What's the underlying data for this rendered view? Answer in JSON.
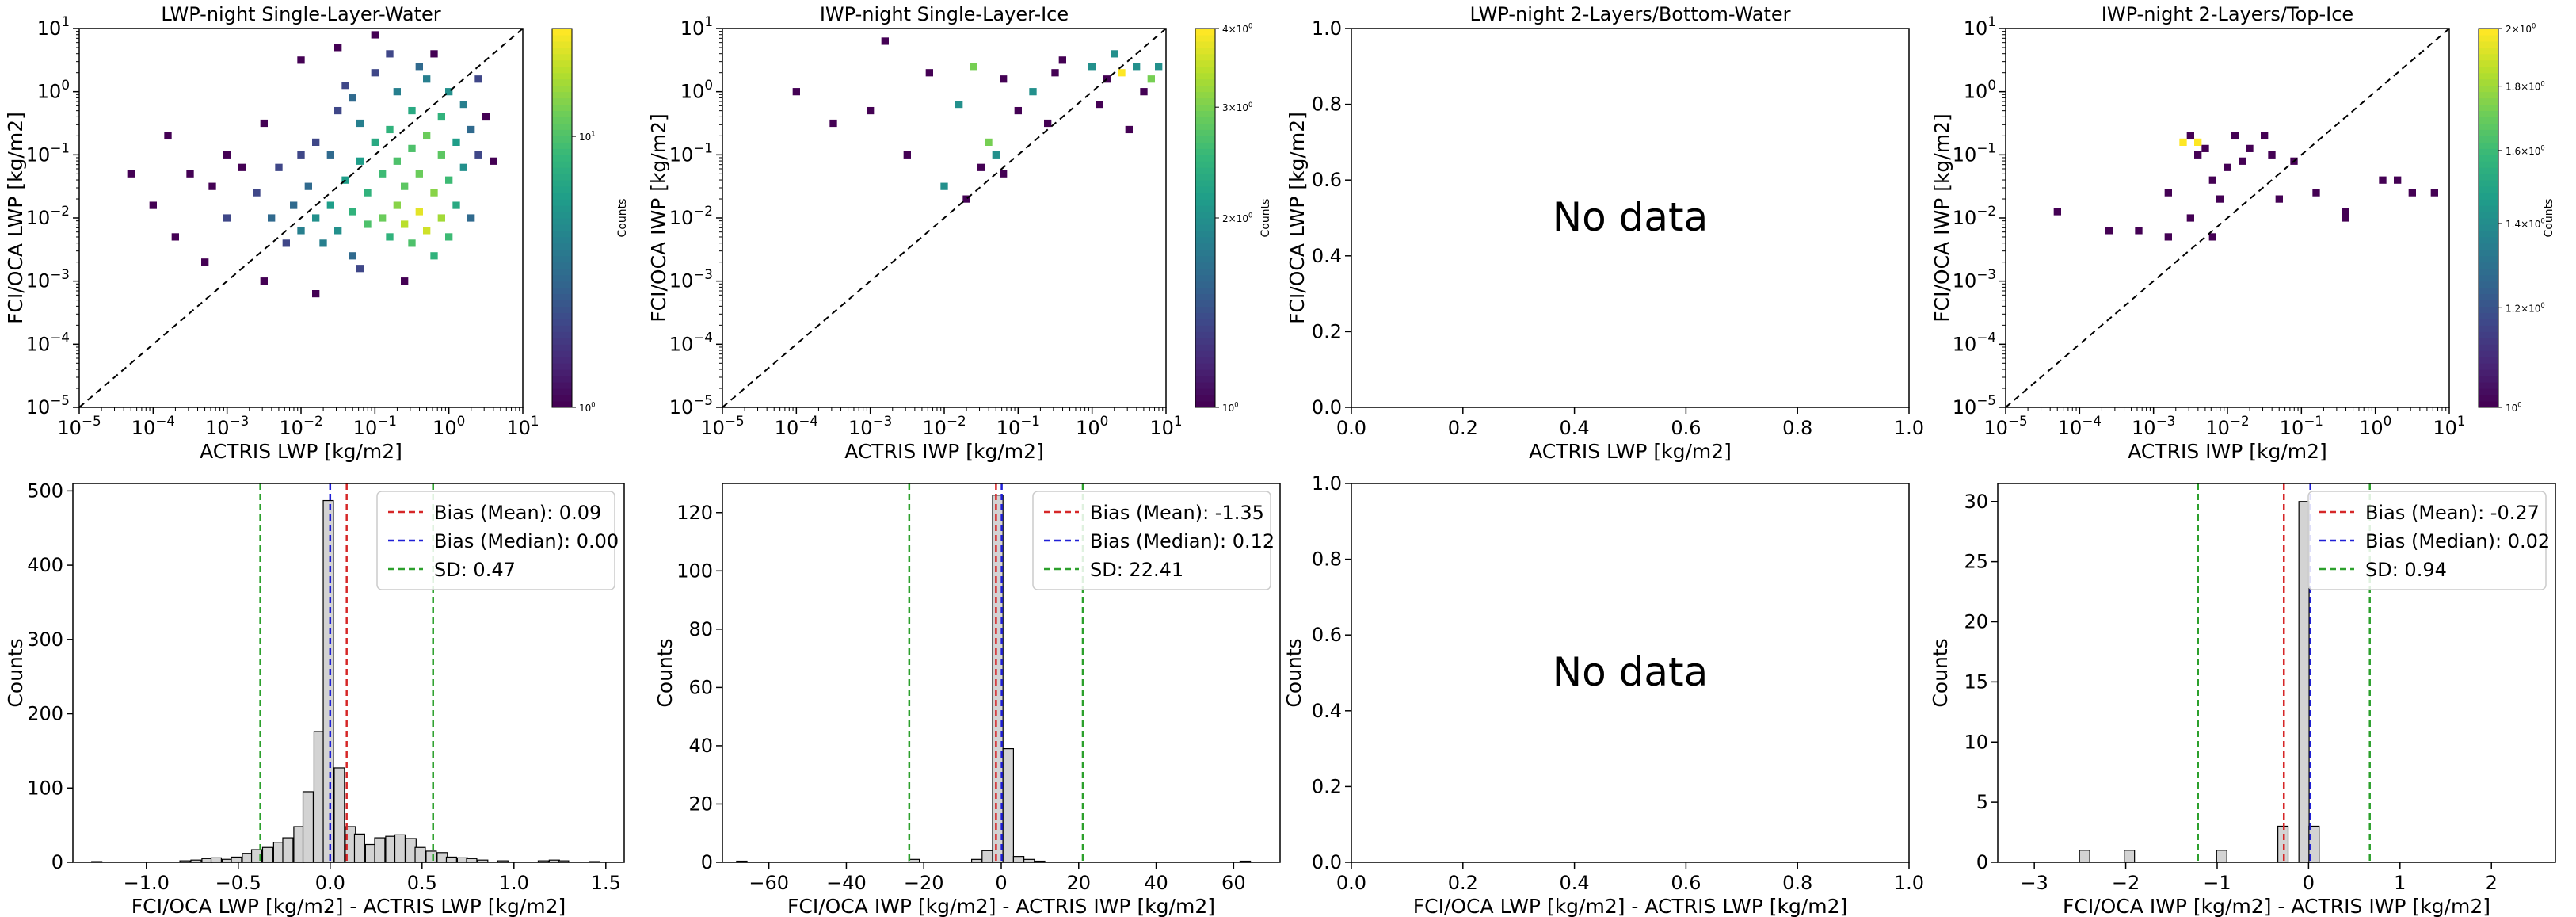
{
  "chart_data": [
    {
      "type": "heatmap",
      "title": "LWP-night Single-Layer-Water",
      "xlabel": "ACTRIS LWP [kg/m2]",
      "ylabel": "FCI/OCA LWP [kg/m2]",
      "xscale": "log",
      "yscale": "log",
      "xlim": [
        1e-05,
        10
      ],
      "ylim": [
        1e-05,
        10
      ],
      "xticks": [
        "10^-5",
        "10^-4",
        "10^-3",
        "10^-2",
        "10^-1",
        "10^0",
        "10^1"
      ],
      "yticks": [
        "10^-5",
        "10^-4",
        "10^-3",
        "10^-2",
        "10^-1",
        "10^0",
        "10^1"
      ],
      "diagonal": "1:1 dashed line",
      "colormap": "viridis",
      "colorbar": {
        "label": "Counts",
        "scale": "log",
        "range": [
          1,
          25
        ],
        "ticks": [
          "10^0",
          "10^1"
        ]
      },
      "bins_log10": [
        [
          -3.5,
          -1.3,
          1
        ],
        [
          -3.2,
          -1.5,
          1
        ],
        [
          -3.0,
          -1.0,
          1
        ],
        [
          -3.0,
          -2.0,
          2
        ],
        [
          -2.8,
          -1.2,
          1
        ],
        [
          -2.6,
          -1.6,
          2
        ],
        [
          -2.5,
          -0.5,
          1
        ],
        [
          -2.4,
          -2.0,
          3
        ],
        [
          -2.3,
          -1.2,
          2
        ],
        [
          -2.2,
          -2.4,
          2
        ],
        [
          -2.1,
          -1.8,
          3
        ],
        [
          -2.0,
          -1.0,
          2
        ],
        [
          -2.0,
          -2.2,
          4
        ],
        [
          -1.9,
          -1.5,
          3
        ],
        [
          -1.8,
          -2.0,
          5
        ],
        [
          -1.8,
          -0.8,
          2
        ],
        [
          -1.7,
          -2.4,
          4
        ],
        [
          -1.6,
          -1.0,
          3
        ],
        [
          -1.6,
          -1.8,
          6
        ],
        [
          -1.5,
          -2.2,
          5
        ],
        [
          -1.5,
          -0.3,
          2
        ],
        [
          -1.4,
          -1.4,
          6
        ],
        [
          -1.4,
          0.1,
          2
        ],
        [
          -1.3,
          -2.6,
          3
        ],
        [
          -1.3,
          -1.9,
          8
        ],
        [
          -1.2,
          -1.1,
          6
        ],
        [
          -1.2,
          -0.5,
          4
        ],
        [
          -1.1,
          -2.1,
          10
        ],
        [
          -1.1,
          -1.6,
          8
        ],
        [
          -1.0,
          -0.8,
          7
        ],
        [
          -1.0,
          0.3,
          2
        ],
        [
          -0.9,
          -2.0,
          12
        ],
        [
          -0.9,
          -1.3,
          9
        ],
        [
          -0.8,
          -2.3,
          8
        ],
        [
          -0.8,
          -0.6,
          8
        ],
        [
          -0.7,
          -1.8,
          14
        ],
        [
          -0.7,
          -1.1,
          10
        ],
        [
          -0.7,
          0.0,
          4
        ],
        [
          -0.6,
          -2.1,
          18
        ],
        [
          -0.6,
          -1.5,
          11
        ],
        [
          -0.5,
          -2.4,
          10
        ],
        [
          -0.5,
          -0.9,
          10
        ],
        [
          -0.5,
          -0.3,
          7
        ],
        [
          -0.4,
          -1.9,
          22
        ],
        [
          -0.4,
          -1.3,
          12
        ],
        [
          -0.3,
          -2.2,
          20
        ],
        [
          -0.3,
          -0.7,
          12
        ],
        [
          -0.3,
          0.2,
          4
        ],
        [
          -0.2,
          -1.6,
          14
        ],
        [
          -0.2,
          -2.6,
          8
        ],
        [
          -0.1,
          -1.0,
          11
        ],
        [
          -0.1,
          -2.0,
          16
        ],
        [
          -0.1,
          -0.4,
          8
        ],
        [
          0.0,
          -1.4,
          9
        ],
        [
          0.0,
          -2.3,
          9
        ],
        [
          0.0,
          0.0,
          5
        ],
        [
          0.1,
          -0.8,
          6
        ],
        [
          0.1,
          -1.8,
          7
        ],
        [
          0.2,
          -1.2,
          5
        ],
        [
          0.2,
          -0.2,
          4
        ],
        [
          0.3,
          -0.6,
          3
        ],
        [
          0.3,
          -2.0,
          3
        ],
        [
          0.4,
          -1.0,
          2
        ],
        [
          0.4,
          0.2,
          2
        ],
        [
          0.5,
          -0.4,
          1
        ],
        [
          -2.0,
          0.5,
          1
        ],
        [
          -1.5,
          0.7,
          1
        ],
        [
          -1.0,
          0.9,
          1
        ],
        [
          -2.5,
          -3.0,
          1
        ],
        [
          -1.8,
          -3.2,
          1
        ],
        [
          -1.2,
          -2.8,
          2
        ],
        [
          -0.6,
          -3.0,
          1
        ],
        [
          -3.8,
          -0.7,
          1
        ],
        [
          -4.0,
          -1.8,
          1
        ],
        [
          -4.3,
          -1.3,
          1
        ],
        [
          -3.7,
          -2.3,
          1
        ],
        [
          -3.3,
          -2.7,
          1
        ],
        [
          -0.2,
          0.6,
          1
        ],
        [
          0.6,
          -1.1,
          1
        ],
        [
          -0.8,
          0.6,
          2
        ],
        [
          -1.3,
          -0.1,
          3
        ],
        [
          -0.4,
          0.4,
          3
        ]
      ]
    },
    {
      "type": "heatmap",
      "title": "IWP-night Single-Layer-Ice",
      "xlabel": "ACTRIS IWP [kg/m2]",
      "ylabel": "FCI/OCA IWP [kg/m2]",
      "xscale": "log",
      "yscale": "log",
      "xlim": [
        1e-05,
        10
      ],
      "ylim": [
        1e-05,
        10
      ],
      "xticks": [
        "10^-5",
        "10^-4",
        "10^-3",
        "10^-2",
        "10^-1",
        "10^0",
        "10^1"
      ],
      "yticks": [
        "10^-5",
        "10^-4",
        "10^-3",
        "10^-2",
        "10^-1",
        "10^0",
        "10^1"
      ],
      "diagonal": "1:1 dashed line",
      "colormap": "viridis",
      "colorbar": {
        "label": "Counts",
        "scale": "log",
        "range": [
          1,
          4
        ],
        "ticks": [
          "10^0",
          "2×10^0",
          "3×10^0",
          "4×10^0"
        ]
      },
      "bins_log10": [
        [
          -2.8,
          0.8,
          1
        ],
        [
          -2.2,
          0.3,
          1
        ],
        [
          -1.8,
          -0.2,
          2
        ],
        [
          -1.5,
          -1.2,
          1
        ],
        [
          -1.3,
          -1.0,
          2
        ],
        [
          -1.0,
          -0.3,
          1
        ],
        [
          -0.8,
          0.0,
          2
        ],
        [
          -0.5,
          0.3,
          1
        ],
        [
          0.0,
          0.4,
          2
        ],
        [
          0.2,
          0.2,
          1
        ],
        [
          0.4,
          0.3,
          4
        ],
        [
          0.6,
          0.4,
          2
        ],
        [
          0.8,
          0.2,
          3
        ],
        [
          0.9,
          0.4,
          2
        ],
        [
          -1.6,
          0.4,
          3
        ],
        [
          -1.2,
          0.2,
          1
        ],
        [
          -0.6,
          -0.5,
          1
        ],
        [
          -3.5,
          -0.5,
          1
        ],
        [
          -4.0,
          0.0,
          1
        ],
        [
          -2.0,
          -1.5,
          2
        ],
        [
          -1.7,
          -1.7,
          1
        ],
        [
          -1.4,
          -0.8,
          3
        ],
        [
          -1.2,
          -1.3,
          1
        ],
        [
          -0.4,
          0.5,
          1
        ],
        [
          0.1,
          -0.2,
          1
        ],
        [
          0.3,
          0.6,
          2
        ],
        [
          0.5,
          -0.6,
          1
        ],
        [
          0.7,
          0.0,
          1
        ],
        [
          -2.5,
          -1.0,
          1
        ],
        [
          -3.0,
          -0.3,
          1
        ]
      ]
    },
    {
      "type": "heatmap",
      "title": "LWP-night 2-Layers/Bottom-Water",
      "xlabel": "ACTRIS LWP [kg/m2]",
      "ylabel": "FCI/OCA LWP [kg/m2]",
      "xlim": [
        0.0,
        1.0
      ],
      "ylim": [
        0.0,
        1.0
      ],
      "xticks": [
        "0.0",
        "0.2",
        "0.4",
        "0.6",
        "0.8",
        "1.0"
      ],
      "yticks": [
        "0.0",
        "0.2",
        "0.4",
        "0.6",
        "0.8",
        "1.0"
      ],
      "annotation": "No data"
    },
    {
      "type": "heatmap",
      "title": "IWP-night 2-Layers/Top-Ice",
      "xlabel": "ACTRIS IWP [kg/m2]",
      "ylabel": "FCI/OCA IWP [kg/m2]",
      "xscale": "log",
      "yscale": "log",
      "xlim": [
        1e-05,
        10
      ],
      "ylim": [
        1e-05,
        10
      ],
      "xticks": [
        "10^-5",
        "10^-4",
        "10^-3",
        "10^-2",
        "10^-1",
        "10^0",
        "10^1"
      ],
      "yticks": [
        "10^-5",
        "10^-4",
        "10^-3",
        "10^-2",
        "10^-1",
        "10^0",
        "10^1"
      ],
      "diagonal": "1:1 dashed line",
      "colormap": "viridis",
      "colorbar": {
        "label": "Counts",
        "scale": "log",
        "range": [
          1,
          2
        ],
        "ticks": [
          "10^0",
          "1.2×10^0",
          "1.4×10^0",
          "1.6×10^0",
          "1.8×10^0",
          "2×10^0"
        ]
      },
      "bins_log10": [
        [
          -4.3,
          -1.9,
          1
        ],
        [
          -3.6,
          -2.2,
          1
        ],
        [
          -3.2,
          -2.2,
          1
        ],
        [
          -2.8,
          -1.6,
          1
        ],
        [
          -2.8,
          -2.3,
          1
        ],
        [
          -2.5,
          -2.0,
          1
        ],
        [
          -2.2,
          -2.3,
          1
        ],
        [
          -2.5,
          -0.7,
          1
        ],
        [
          -2.4,
          -1.0,
          1
        ],
        [
          -2.3,
          -0.9,
          1
        ],
        [
          -2.2,
          -1.4,
          1
        ],
        [
          -2.1,
          -1.7,
          1
        ],
        [
          -2.0,
          -1.2,
          1
        ],
        [
          -1.9,
          -0.7,
          1
        ],
        [
          -1.8,
          -1.1,
          1
        ],
        [
          -1.7,
          -0.9,
          1
        ],
        [
          -1.5,
          -0.7,
          1
        ],
        [
          -1.4,
          -1.0,
          1
        ],
        [
          -1.3,
          -1.7,
          1
        ],
        [
          -1.1,
          -1.1,
          1
        ],
        [
          -0.8,
          -1.6,
          1
        ],
        [
          -0.4,
          -1.9,
          1
        ],
        [
          -0.4,
          -2.0,
          1
        ],
        [
          0.1,
          -1.4,
          1
        ],
        [
          0.3,
          -1.4,
          1
        ],
        [
          0.5,
          -1.6,
          1
        ],
        [
          0.8,
          -1.6,
          1
        ],
        [
          -2.4,
          -0.8,
          2
        ],
        [
          -2.6,
          -0.8,
          2
        ]
      ]
    },
    {
      "type": "bar",
      "subtype": "histogram",
      "xlabel": "FCI/OCA LWP [kg/m2] - ACTRIS LWP [kg/m2]",
      "ylabel": "Counts",
      "xlim": [
        -1.4,
        1.6
      ],
      "ylim": [
        0,
        510
      ],
      "xticks": [
        "−1.0",
        "−0.5",
        "0.0",
        "0.5",
        "1.0",
        "1.5"
      ],
      "yticks": [
        "0",
        "100",
        "200",
        "300",
        "400",
        "500"
      ],
      "bin_width": 0.0556,
      "bins": [
        [
          -1.27,
          1
        ],
        [
          -0.79,
          2
        ],
        [
          -0.73,
          3
        ],
        [
          -0.67,
          5
        ],
        [
          -0.62,
          6
        ],
        [
          -0.56,
          4
        ],
        [
          -0.51,
          7
        ],
        [
          -0.45,
          12
        ],
        [
          -0.4,
          17
        ],
        [
          -0.34,
          20
        ],
        [
          -0.28,
          27
        ],
        [
          -0.23,
          33
        ],
        [
          -0.17,
          48
        ],
        [
          -0.12,
          95
        ],
        [
          -0.06,
          176
        ],
        [
          -0.01,
          487
        ],
        [
          0.05,
          127
        ],
        [
          0.11,
          48
        ],
        [
          0.16,
          38
        ],
        [
          0.22,
          24
        ],
        [
          0.27,
          33
        ],
        [
          0.33,
          35
        ],
        [
          0.38,
          37
        ],
        [
          0.44,
          32
        ],
        [
          0.49,
          20
        ],
        [
          0.55,
          15
        ],
        [
          0.61,
          13
        ],
        [
          0.66,
          7
        ],
        [
          0.72,
          6
        ],
        [
          0.77,
          5
        ],
        [
          0.83,
          3
        ],
        [
          0.94,
          2
        ],
        [
          1.16,
          2
        ],
        [
          1.22,
          3
        ],
        [
          1.27,
          2
        ],
        [
          1.44,
          1
        ]
      ],
      "lines": [
        {
          "name": "Bias (Mean): 0.09",
          "value": 0.09,
          "color": "#d62728"
        },
        {
          "name": "Bias (Median): 0.00",
          "value": 0.0,
          "color": "#1f1fd6"
        },
        {
          "name": "SD: 0.47",
          "value": 0.47,
          "color": "#2ca02c"
        }
      ],
      "legend": "top-right"
    },
    {
      "type": "bar",
      "subtype": "histogram",
      "xlabel": "FCI/OCA IWP [kg/m2] - ACTRIS IWP [kg/m2]",
      "ylabel": "Counts",
      "xlim": [
        -72,
        72
      ],
      "ylim": [
        0,
        130
      ],
      "xticks": [
        "−60",
        "−40",
        "−20",
        "0",
        "20",
        "40",
        "60"
      ],
      "yticks": [
        "0",
        "20",
        "40",
        "60",
        "80",
        "100",
        "120"
      ],
      "bin_width": 2.7,
      "bins": [
        [
          -67,
          0.4
        ],
        [
          -22.5,
          1
        ],
        [
          -6.3,
          1
        ],
        [
          -3.6,
          4
        ],
        [
          -0.9,
          126
        ],
        [
          1.8,
          39
        ],
        [
          4.5,
          2
        ],
        [
          7.2,
          1
        ],
        [
          9.9,
          0.4
        ],
        [
          63,
          0.4
        ]
      ],
      "lines": [
        {
          "name": "Bias (Mean): -1.35",
          "value": -1.35,
          "color": "#d62728"
        },
        {
          "name": "Bias (Median): 0.12",
          "value": 0.12,
          "color": "#1f1fd6"
        },
        {
          "name": "SD: 22.41",
          "value": 22.41,
          "color": "#2ca02c"
        }
      ],
      "legend": "top-right"
    },
    {
      "type": "bar",
      "subtype": "histogram",
      "xlabel": "FCI/OCA LWP [kg/m2] - ACTRIS LWP [kg/m2]",
      "ylabel": "Counts",
      "xlim": [
        0.0,
        1.0
      ],
      "ylim": [
        0.0,
        1.0
      ],
      "xticks": [
        "0.0",
        "0.2",
        "0.4",
        "0.6",
        "0.8",
        "1.0"
      ],
      "yticks": [
        "0.0",
        "0.2",
        "0.4",
        "0.6",
        "0.8",
        "1.0"
      ],
      "annotation": "No data"
    },
    {
      "type": "bar",
      "subtype": "histogram",
      "xlabel": "FCI/OCA IWP [kg/m2] - ACTRIS IWP [kg/m2]",
      "ylabel": "Counts",
      "xlim": [
        -3.4,
        2.7
      ],
      "ylim": [
        0,
        31.5
      ],
      "xticks": [
        "−3",
        "−2",
        "−1",
        "0",
        "1",
        "2"
      ],
      "yticks": [
        "0",
        "5",
        "10",
        "15",
        "20",
        "25",
        "30"
      ],
      "bin_width": 0.112,
      "bins": [
        [
          -2.45,
          1
        ],
        [
          -1.96,
          1
        ],
        [
          -0.95,
          1
        ],
        [
          -0.28,
          3
        ],
        [
          -0.05,
          30
        ],
        [
          0.06,
          3
        ]
      ],
      "lines": [
        {
          "name": "Bias (Mean): -0.27",
          "value": -0.27,
          "color": "#d62728"
        },
        {
          "name": "Bias (Median): 0.02",
          "value": 0.02,
          "color": "#1f1fd6"
        },
        {
          "name": "SD: 0.94",
          "value": 0.94,
          "color": "#2ca02c"
        }
      ],
      "legend": "top-right"
    }
  ]
}
